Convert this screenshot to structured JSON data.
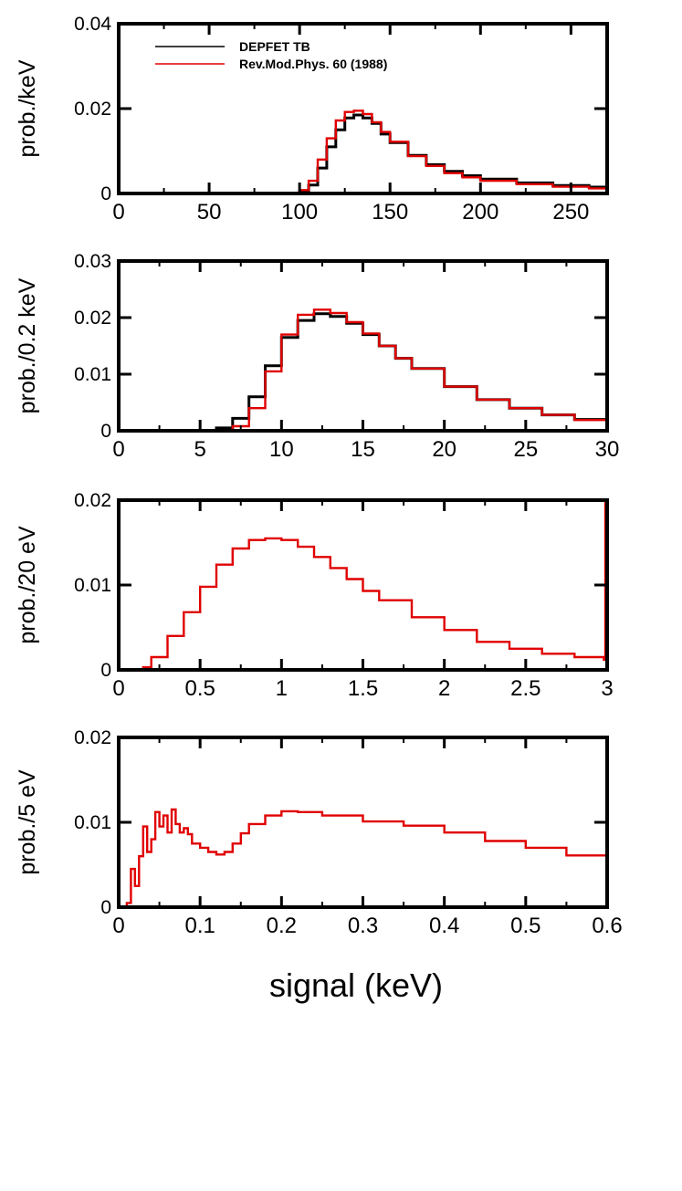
{
  "colors": {
    "series_a": "#000000",
    "series_b": "#e00000"
  },
  "xlabel": "signal (keV)",
  "chart_data": [
    {
      "type": "line",
      "ylabel": "prob./keV",
      "xlim": [
        0,
        270
      ],
      "ylim": [
        0,
        0.04
      ],
      "xticks": [
        0,
        50,
        100,
        150,
        200,
        250
      ],
      "xtick_labels": [
        "0",
        "50",
        "100",
        "150",
        "200",
        "250"
      ],
      "yticks": [
        0,
        0.02,
        0.04
      ],
      "ytick_labels": [
        "0",
        "0.02",
        "0.04"
      ],
      "legend": {
        "placement": "top-left",
        "entries": [
          {
            "name": "DEPFET TB",
            "color": "#000000"
          },
          {
            "name": "Rev.Mod.Phys. 60 (1988)",
            "color": "#e00000"
          }
        ]
      },
      "series": [
        {
          "name": "DEPFET TB",
          "color": "#000000",
          "x": [
            0,
            95,
            100,
            105,
            110,
            115,
            120,
            125,
            130,
            135,
            140,
            145,
            150,
            160,
            170,
            180,
            190,
            200,
            220,
            240,
            260,
            270
          ],
          "y": [
            0,
            0,
            0.0005,
            0.002,
            0.006,
            0.011,
            0.015,
            0.0178,
            0.0185,
            0.0178,
            0.0165,
            0.014,
            0.012,
            0.009,
            0.0068,
            0.0052,
            0.0042,
            0.0034,
            0.0025,
            0.0019,
            0.0015,
            0.0013
          ]
        },
        {
          "name": "Rev.Mod.Phys. 60 (1988)",
          "color": "#e00000",
          "x": [
            0,
            95,
            100,
            105,
            110,
            115,
            120,
            125,
            130,
            135,
            140,
            145,
            150,
            160,
            170,
            180,
            190,
            200,
            220,
            240,
            260,
            270
          ],
          "y": [
            0,
            0,
            0.0008,
            0.003,
            0.008,
            0.013,
            0.0172,
            0.0192,
            0.0195,
            0.0187,
            0.0168,
            0.0145,
            0.0122,
            0.0088,
            0.0065,
            0.0048,
            0.0038,
            0.003,
            0.0022,
            0.0016,
            0.0012,
            0.0011
          ]
        }
      ]
    },
    {
      "type": "line",
      "ylabel": "prob./0.2 keV",
      "xlim": [
        0,
        30
      ],
      "ylim": [
        0,
        0.03
      ],
      "xticks": [
        0,
        5,
        10,
        15,
        20,
        25,
        30
      ],
      "xtick_labels": [
        "0",
        "5",
        "10",
        "15",
        "20",
        "25",
        "30"
      ],
      "yticks": [
        0,
        0.01,
        0.02,
        0.03
      ],
      "ytick_labels": [
        "0",
        "0.01",
        "0.02",
        "0.03"
      ],
      "series": [
        {
          "name": "DEPFET TB",
          "color": "#000000",
          "x": [
            0,
            5,
            6,
            7,
            8,
            9,
            10,
            11,
            12,
            13,
            14,
            15,
            16,
            17,
            18,
            20,
            22,
            24,
            26,
            28,
            30
          ],
          "y": [
            0,
            0,
            0.0005,
            0.0022,
            0.006,
            0.0115,
            0.0165,
            0.0195,
            0.0207,
            0.0202,
            0.019,
            0.017,
            0.015,
            0.0128,
            0.011,
            0.0078,
            0.0055,
            0.004,
            0.0028,
            0.002,
            0.0014
          ]
        },
        {
          "name": "Rev.Mod.Phys. 60 (1988)",
          "color": "#e00000",
          "x": [
            0,
            6,
            7,
            8,
            9,
            10,
            11,
            12,
            13,
            14,
            15,
            16,
            17,
            18,
            20,
            22,
            24,
            26,
            28,
            30
          ],
          "y": [
            0,
            0,
            0.0008,
            0.004,
            0.0105,
            0.017,
            0.0205,
            0.0214,
            0.0208,
            0.0192,
            0.0172,
            0.015,
            0.0128,
            0.011,
            0.0078,
            0.0055,
            0.004,
            0.0028,
            0.0019,
            0.0014
          ]
        }
      ]
    },
    {
      "type": "line",
      "ylabel": "prob./20 eV",
      "xlim": [
        0,
        3
      ],
      "ylim": [
        0,
        0.02
      ],
      "xticks": [
        0,
        0.5,
        1,
        1.5,
        2,
        2.5,
        3
      ],
      "xtick_labels": [
        "0",
        "0.5",
        "1",
        "1.5",
        "2",
        "2.5",
        "3"
      ],
      "yticks": [
        0,
        0.01,
        0.02
      ],
      "ytick_labels": [
        "0",
        "0.01",
        "0.02"
      ],
      "series": [
        {
          "name": "Rev.Mod.Phys. 60 (1988)",
          "color": "#e00000",
          "x": [
            0,
            0.1,
            0.15,
            0.2,
            0.3,
            0.4,
            0.5,
            0.6,
            0.7,
            0.8,
            0.9,
            1.0,
            1.1,
            1.2,
            1.3,
            1.4,
            1.5,
            1.6,
            1.8,
            2.0,
            2.2,
            2.4,
            2.6,
            2.8,
            2.98
          ],
          "y": [
            0,
            0,
            0.0003,
            0.0015,
            0.004,
            0.0068,
            0.0098,
            0.0124,
            0.0143,
            0.0153,
            0.0155,
            0.0153,
            0.0145,
            0.0133,
            0.012,
            0.0107,
            0.0093,
            0.0082,
            0.0062,
            0.0047,
            0.0033,
            0.0025,
            0.0019,
            0.0015,
            0.0012
          ]
        }
      ]
    },
    {
      "type": "line",
      "ylabel": "prob./5 eV",
      "xlim": [
        0,
        0.6
      ],
      "ylim": [
        0,
        0.02
      ],
      "xticks": [
        0,
        0.1,
        0.2,
        0.3,
        0.4,
        0.5,
        0.6
      ],
      "xtick_labels": [
        "0",
        "0.1",
        "0.2",
        "0.3",
        "0.4",
        "0.5",
        "0.6"
      ],
      "yticks": [
        0,
        0.01,
        0.02
      ],
      "ytick_labels": [
        "0",
        "0.01",
        "0.02"
      ],
      "series": [
        {
          "name": "Rev.Mod.Phys. 60 (1988)",
          "color": "#e00000",
          "x": [
            0,
            0.01,
            0.015,
            0.02,
            0.025,
            0.03,
            0.035,
            0.04,
            0.045,
            0.05,
            0.055,
            0.06,
            0.065,
            0.07,
            0.075,
            0.08,
            0.085,
            0.09,
            0.1,
            0.11,
            0.12,
            0.13,
            0.14,
            0.15,
            0.16,
            0.18,
            0.2,
            0.22,
            0.25,
            0.3,
            0.35,
            0.4,
            0.45,
            0.5,
            0.55,
            0.6
          ],
          "y": [
            0,
            0.0005,
            0.0045,
            0.0025,
            0.006,
            0.0095,
            0.0065,
            0.008,
            0.0112,
            0.0095,
            0.0108,
            0.0088,
            0.0115,
            0.0098,
            0.0088,
            0.0093,
            0.0086,
            0.0075,
            0.007,
            0.0065,
            0.0062,
            0.0065,
            0.0075,
            0.0087,
            0.0098,
            0.0108,
            0.0113,
            0.0112,
            0.0108,
            0.0101,
            0.0096,
            0.0088,
            0.0078,
            0.007,
            0.0061,
            0.0052
          ]
        }
      ]
    }
  ]
}
